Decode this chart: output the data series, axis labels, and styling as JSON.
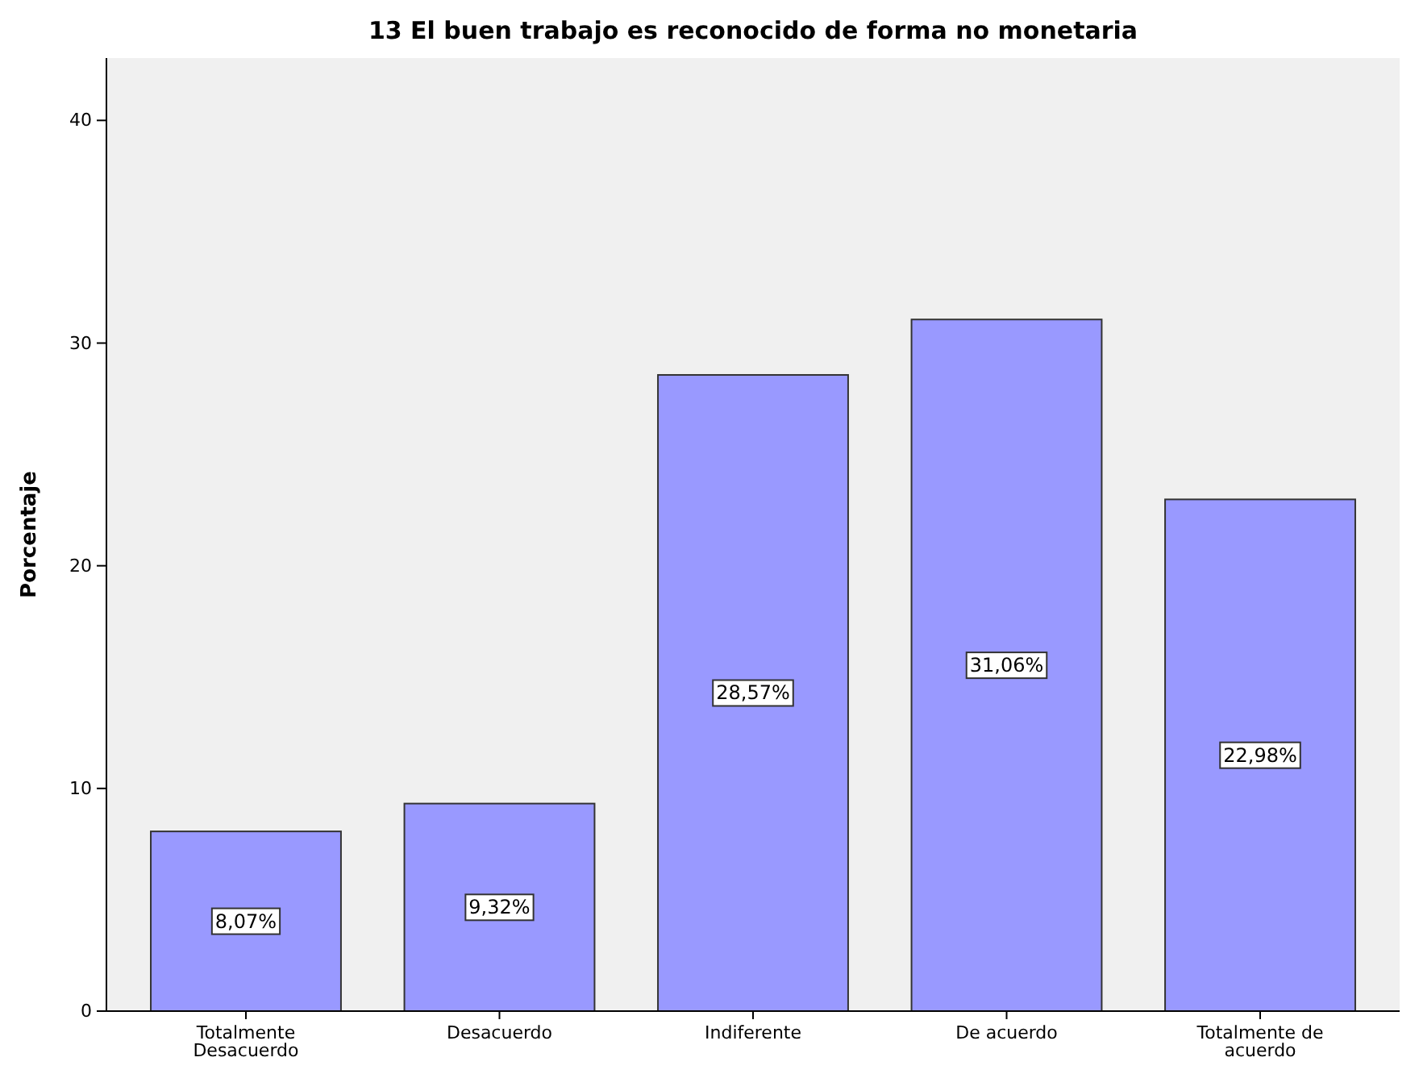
{
  "chart_data": {
    "type": "bar",
    "title": "13 El buen trabajo es reconocido de forma no monetaria",
    "ylabel": "Porcentaje",
    "categories": [
      "Totalmente Desacuerdo",
      "Desacuerdo",
      "Indiferente",
      "De acuerdo",
      "Totalmente de acuerdo"
    ],
    "values": [
      8.07,
      9.32,
      28.57,
      31.06,
      22.98
    ],
    "value_labels": [
      "8,07%",
      "9,32%",
      "28,57%",
      "31,06%",
      "22,98%"
    ],
    "color": "#9999ff",
    "ylim": [
      0,
      42.8
    ],
    "yticks": [
      0,
      10,
      20,
      30,
      40
    ],
    "grid": false
  }
}
